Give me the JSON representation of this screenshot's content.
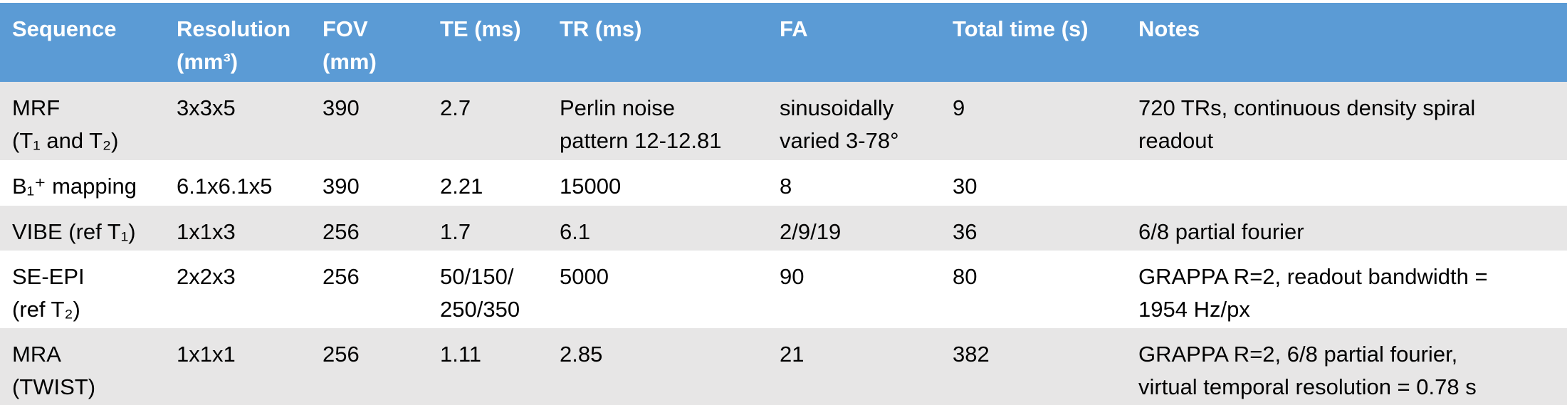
{
  "table": {
    "header": [
      [
        "Sequence"
      ],
      [
        "Resolution",
        "(mm³)"
      ],
      [
        "FOV",
        "(mm)"
      ],
      [
        "TE (ms)"
      ],
      [
        "TR (ms)"
      ],
      [
        "FA"
      ],
      [
        "Total time (s)"
      ],
      [
        "Notes"
      ]
    ],
    "rows": [
      [
        [
          "MRF",
          "(T₁ and T₂)"
        ],
        [
          "3x3x5"
        ],
        [
          "390"
        ],
        [
          "2.7"
        ],
        [
          "Perlin noise",
          "pattern 12-12.81"
        ],
        [
          "sinusoidally",
          "varied 3-78°"
        ],
        [
          "9"
        ],
        [
          "720 TRs, continuous density spiral",
          "readout"
        ]
      ],
      [
        [
          "B₁⁺ mapping"
        ],
        [
          "6.1x6.1x5"
        ],
        [
          "390"
        ],
        [
          "2.21"
        ],
        [
          "15000"
        ],
        [
          "8"
        ],
        [
          "30"
        ],
        []
      ],
      [
        [
          "VIBE (ref T₁)"
        ],
        [
          "1x1x3"
        ],
        [
          "256"
        ],
        [
          "1.7"
        ],
        [
          "6.1"
        ],
        [
          "2/9/19"
        ],
        [
          "36"
        ],
        [
          "6/8 partial fourier"
        ]
      ],
      [
        [
          "SE-EPI",
          "(ref T₂)"
        ],
        [
          "2x2x3"
        ],
        [
          "256"
        ],
        [
          "50/150/",
          "250/350"
        ],
        [
          "5000"
        ],
        [
          "90"
        ],
        [
          "80"
        ],
        [
          "GRAPPA R=2, readout bandwidth =",
          "1954 Hz/px"
        ]
      ],
      [
        [
          "MRA",
          "(TWIST)"
        ],
        [
          "1x1x1"
        ],
        [
          "256"
        ],
        [
          "1.11"
        ],
        [
          "2.85"
        ],
        [
          "21"
        ],
        [
          "382"
        ],
        [
          "GRAPPA R=2, 6/8 partial fourier,",
          "virtual temporal resolution = 0.78 s"
        ]
      ]
    ]
  }
}
